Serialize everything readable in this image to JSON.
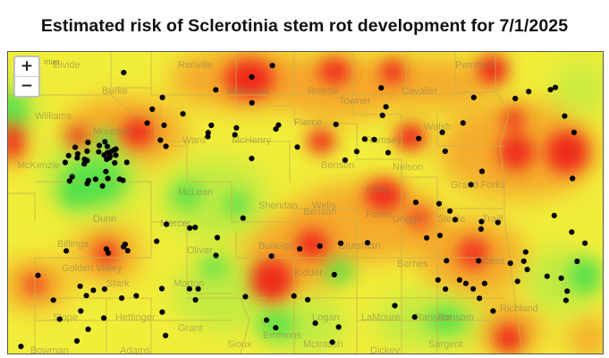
{
  "title": "Estimated risk of Sclerotinia stem rot development for 7/1/2025",
  "map": {
    "tag": "map",
    "zoom_in_label": "+",
    "zoom_out_label": "−",
    "colors": {
      "base": "#f1ee3a",
      "orange": "#f6a12a",
      "red": "#ee2a1f",
      "light_green": "#b6ea45",
      "green": "#4fe04a",
      "borders": "#c9b04a",
      "stations": "#000000"
    }
  },
  "counties": [
    "Divide",
    "Burke",
    "Renville",
    "Bottineau",
    "Rolette",
    "Towner",
    "Cavalier",
    "Pembina",
    "Williams",
    "Mountrail",
    "Ward",
    "McHenry",
    "Pierce",
    "Benson",
    "Ramsey",
    "Walsh",
    "Nelson",
    "Grand Forks",
    "Eddy",
    "Foster",
    "Griggs",
    "Steele",
    "Traill",
    "McKenzie",
    "McLean",
    "Sheridan",
    "Wells",
    "Stutsman",
    "Barnes",
    "Cass",
    "Dunn",
    "Mercer",
    "Oliver",
    "Burleigh",
    "Kidder",
    "Billings",
    "Stark",
    "Morton",
    "Slope",
    "Hettinger",
    "Grant",
    "Emmons",
    "Logan",
    "LaMoure",
    "Ransom",
    "Richland",
    "Sioux",
    "McIntosh",
    "Dickey",
    "Sargent",
    "Bowman",
    "Adams",
    "Golden Valley",
    "Benson",
    "Ransom"
  ],
  "stations_count": 160
}
